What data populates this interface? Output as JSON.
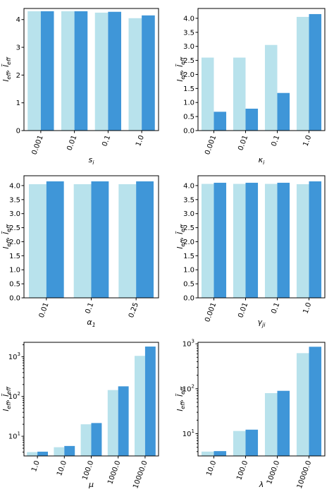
{
  "colors": {
    "light": "#b8e2ec",
    "dark": "#3f96d8"
  },
  "ylabel": "l_eff, l̃_eff",
  "chart_data": [
    {
      "type": "bar",
      "xlabel": "s_i",
      "categories": [
        "0.001",
        "0.01",
        "0.1",
        "1.0"
      ],
      "series": [
        {
          "values": [
            4.3,
            4.3,
            4.25,
            4.05
          ]
        },
        {
          "values": [
            4.3,
            4.3,
            4.28,
            4.15
          ]
        }
      ],
      "ylim": [
        0,
        4.4
      ],
      "yscale": "linear",
      "yticks": [
        0,
        1,
        2,
        3,
        4
      ],
      "yticklabels": [
        "0",
        "1",
        "2",
        "3",
        "4"
      ]
    },
    {
      "type": "bar",
      "xlabel": "κ_i",
      "categories": [
        "0.001",
        "0.01",
        "0.1",
        "1.0"
      ],
      "series": [
        {
          "values": [
            2.6,
            2.6,
            3.05,
            4.05
          ]
        },
        {
          "values": [
            0.67,
            0.78,
            1.34,
            4.15
          ]
        }
      ],
      "ylim": [
        0,
        4.35
      ],
      "yscale": "linear",
      "yticks": [
        0,
        0.5,
        1,
        1.5,
        2,
        2.5,
        3,
        3.5,
        4
      ],
      "yticklabels": [
        "0.0",
        "0.5",
        "1.0",
        "1.5",
        "2.0",
        "2.5",
        "3.0",
        "3.5",
        "4.0"
      ]
    },
    {
      "type": "bar",
      "xlabel": "α_1",
      "categories": [
        "0.01",
        "0.1",
        "0.25"
      ],
      "series": [
        {
          "values": [
            4.05,
            4.05,
            4.05
          ]
        },
        {
          "values": [
            4.15,
            4.15,
            4.15
          ]
        }
      ],
      "ylim": [
        0,
        4.35
      ],
      "yscale": "linear",
      "yticks": [
        0,
        0.5,
        1,
        1.5,
        2,
        2.5,
        3,
        3.5,
        4
      ],
      "yticklabels": [
        "0.0",
        "0.5",
        "1.0",
        "1.5",
        "2.0",
        "2.5",
        "3.0",
        "3.5",
        "4.0"
      ]
    },
    {
      "type": "bar",
      "xlabel": "γ_ji",
      "categories": [
        "0.001",
        "0.01",
        "0.1",
        "1.0"
      ],
      "series": [
        {
          "values": [
            4.06,
            4.06,
            4.06,
            4.05
          ]
        },
        {
          "values": [
            4.1,
            4.1,
            4.1,
            4.15
          ]
        }
      ],
      "ylim": [
        0,
        4.35
      ],
      "yscale": "linear",
      "yticks": [
        0,
        0.5,
        1,
        1.5,
        2,
        2.5,
        3,
        3.5,
        4
      ],
      "yticklabels": [
        "0.0",
        "0.5",
        "1.0",
        "1.5",
        "2.0",
        "2.5",
        "3.0",
        "3.5",
        "4.0"
      ]
    },
    {
      "type": "bar",
      "xlabel": "μ",
      "categories": [
        "1.0",
        "10.0",
        "100.0",
        "1000.0",
        "10000.0"
      ],
      "series": [
        {
          "values": [
            4,
            5.3,
            20,
            145,
            1050
          ]
        },
        {
          "values": [
            4.1,
            5.7,
            21.5,
            180,
            1800
          ]
        }
      ],
      "ylim": [
        3.2,
        2300
      ],
      "yscale": "log",
      "yticks": [
        10,
        100,
        1000
      ],
      "yticklabels": [
        "10^1",
        "10^2",
        "10^3"
      ]
    },
    {
      "type": "bar",
      "xlabel": "λ",
      "categories": [
        "10.0",
        "100.0",
        "1000.0",
        "10000.0"
      ],
      "series": [
        {
          "values": [
            4,
            11.5,
            80,
            620
          ]
        },
        {
          "values": [
            4.1,
            12.3,
            90,
            860
          ]
        }
      ],
      "ylim": [
        3.2,
        1080
      ],
      "yscale": "log",
      "yticks": [
        10,
        100,
        1000
      ],
      "yticklabels": [
        "10^1",
        "10^2",
        "10^3"
      ]
    }
  ]
}
